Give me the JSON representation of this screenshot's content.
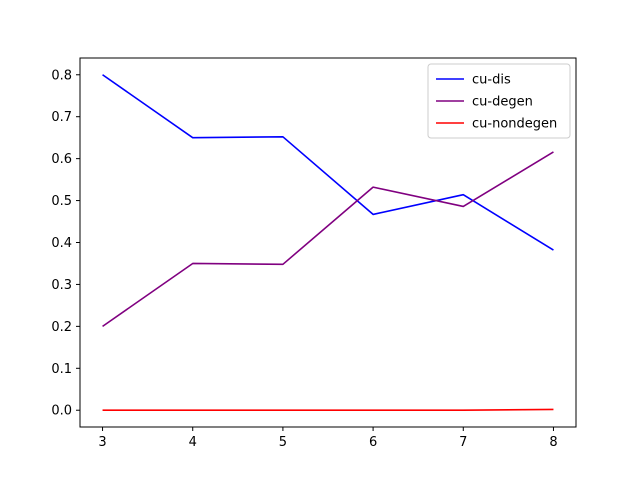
{
  "chart_data": {
    "type": "line",
    "title": "",
    "xlabel": "",
    "ylabel": "",
    "x": [
      3,
      4,
      5,
      6,
      7,
      8
    ],
    "xlim": [
      2.75,
      8.25
    ],
    "ylim": [
      -0.04,
      0.84
    ],
    "xticks": [
      "3",
      "4",
      "5",
      "6",
      "7",
      "8"
    ],
    "yticks": [
      "0.0",
      "0.1",
      "0.2",
      "0.3",
      "0.4",
      "0.5",
      "0.6",
      "0.7",
      "0.8"
    ],
    "grid": false,
    "legend_position": "top-right",
    "series": [
      {
        "name": "cu-dis",
        "color": "#0000ff",
        "values": [
          0.8,
          0.65,
          0.652,
          0.467,
          0.514,
          0.382
        ]
      },
      {
        "name": "cu-degen",
        "color": "#800080",
        "values": [
          0.2,
          0.35,
          0.348,
          0.532,
          0.486,
          0.616
        ]
      },
      {
        "name": "cu-nondegen",
        "color": "#ff0000",
        "values": [
          0.0,
          0.0,
          0.0,
          0.0,
          0.0,
          0.002
        ]
      }
    ]
  }
}
